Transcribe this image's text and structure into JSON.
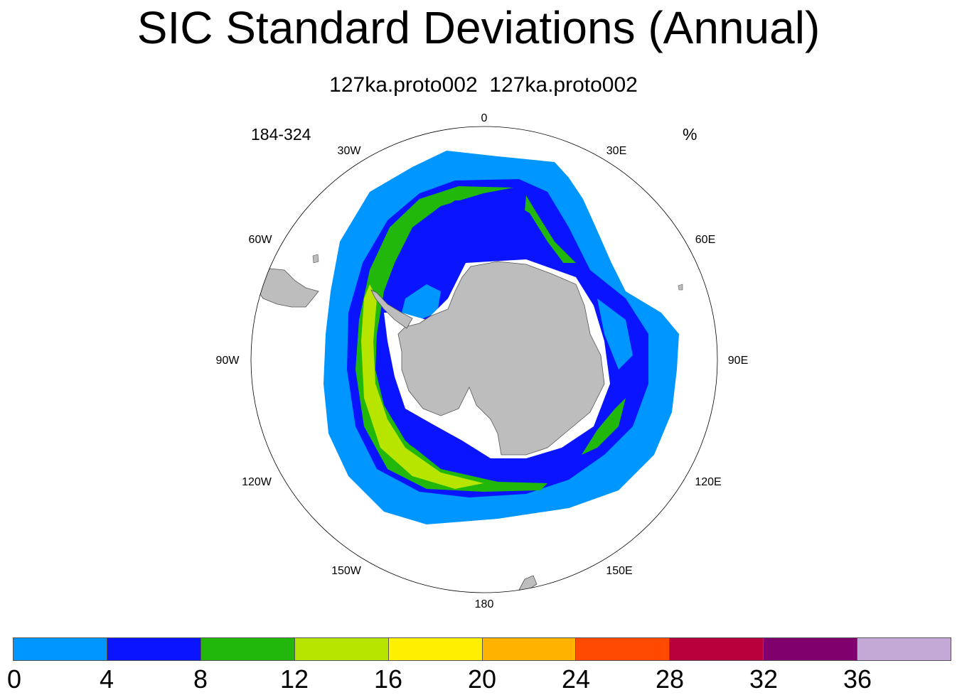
{
  "title": "SIC Standard Deviations (Annual)",
  "subtitle": "127ka.proto002  127ka.proto002",
  "left_label": "184-324",
  "units": "%",
  "map": {
    "projection": "south-polar-stereographic",
    "longitude_labels": [
      "0",
      "30E",
      "60E",
      "90E",
      "120E",
      "150E",
      "180",
      "150W",
      "120W",
      "90W",
      "60W",
      "30W"
    ],
    "land_color": "#bdbdbd"
  },
  "legend": {
    "ticks": [
      "0",
      "4",
      "8",
      "12",
      "16",
      "20",
      "24",
      "28",
      "32",
      "36"
    ],
    "colors": [
      "#0096ff",
      "#0a14ff",
      "#21b80b",
      "#b7e500",
      "#fff000",
      "#ffb300",
      "#ff4a00",
      "#b8003c",
      "#80006e",
      "#c4a9d6"
    ]
  }
}
